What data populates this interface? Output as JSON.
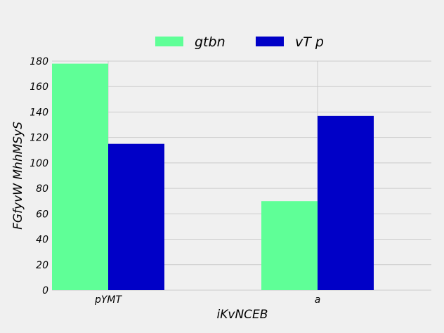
{
  "chart_data": {
    "type": "bar",
    "categories": [
      "pYMT",
      "a"
    ],
    "series": [
      {
        "name": "gtbn",
        "values": [
          178,
          70
        ],
        "color": "#5fff97"
      },
      {
        "name": "vT p",
        "values": [
          115,
          137
        ],
        "color": "#0000c7"
      }
    ],
    "xlabel": "iKvNCEB",
    "ylabel": "FGfyvW MhhMSyS",
    "ylim": [
      0,
      180
    ],
    "yticks": [
      0,
      20,
      40,
      60,
      80,
      100,
      120,
      140,
      160,
      180
    ],
    "grid": true,
    "legend_position": "top-center",
    "background": "#f0f0f0",
    "grid_color": "#cbcbcb"
  }
}
